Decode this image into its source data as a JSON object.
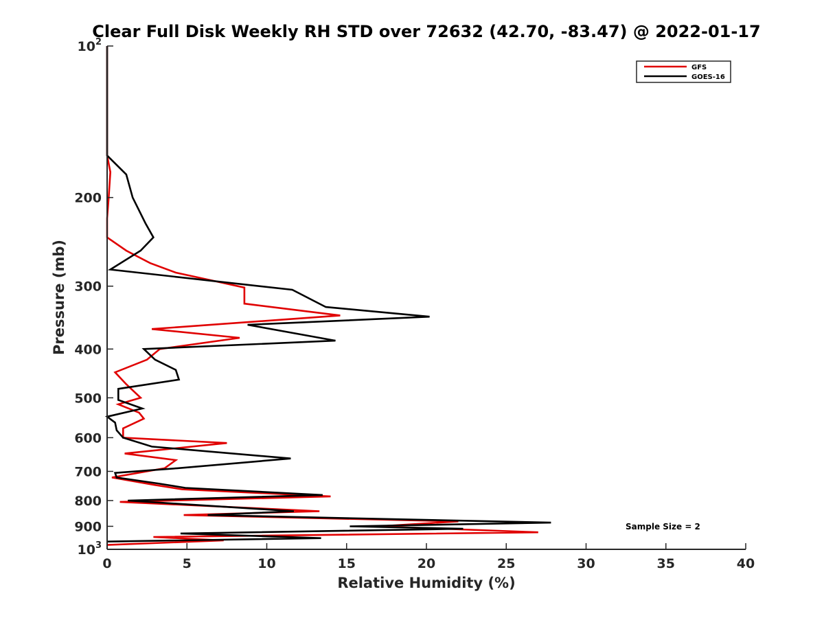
{
  "chart_data": {
    "type": "line",
    "title": "Clear Full Disk Weekly RH STD over 72632 (42.70, -83.47) @ 2022-01-17",
    "xlabel": "Relative Humidity (%)",
    "ylabel": "Pressure (mb)",
    "xlim": [
      0,
      40
    ],
    "ylim": [
      100,
      1000
    ],
    "y_scale": "log",
    "y_reversed": true,
    "grid": false,
    "legend_placement": "top-right",
    "x_ticks": [
      "0",
      "5",
      "10",
      "15",
      "20",
      "25",
      "30",
      "35",
      "40"
    ],
    "x_tick_values": [
      0,
      5,
      10,
      15,
      20,
      25,
      30,
      35,
      40
    ],
    "y_ticks": [
      {
        "value": 100,
        "base": "10",
        "sup": "2"
      },
      {
        "value": 200,
        "base": "200",
        "sup": ""
      },
      {
        "value": 300,
        "base": "300",
        "sup": ""
      },
      {
        "value": 400,
        "base": "400",
        "sup": ""
      },
      {
        "value": 500,
        "base": "500",
        "sup": ""
      },
      {
        "value": 600,
        "base": "600",
        "sup": ""
      },
      {
        "value": 700,
        "base": "700",
        "sup": ""
      },
      {
        "value": 800,
        "base": "800",
        "sup": ""
      },
      {
        "value": 900,
        "base": "900",
        "sup": ""
      },
      {
        "value": 1000,
        "base": "10",
        "sup": "3"
      }
    ],
    "annotation": "Sample Size = 2",
    "series": [
      {
        "name": "GFS",
        "color": "#e00000",
        "points": [
          [
            0.0,
            100
          ],
          [
            0.0,
            150
          ],
          [
            0.0,
            165
          ],
          [
            0.2,
            178
          ],
          [
            0.1,
            200
          ],
          [
            0.0,
            220
          ],
          [
            0.0,
            240
          ],
          [
            1.2,
            255
          ],
          [
            2.7,
            270
          ],
          [
            4.3,
            282
          ],
          [
            6.5,
            292
          ],
          [
            8.6,
            302
          ],
          [
            8.6,
            325
          ],
          [
            14.6,
            343
          ],
          [
            2.8,
            365
          ],
          [
            8.3,
            380
          ],
          [
            3.3,
            400
          ],
          [
            2.5,
            420
          ],
          [
            0.5,
            445
          ],
          [
            1.2,
            470
          ],
          [
            2.1,
            500
          ],
          [
            0.7,
            515
          ],
          [
            2.0,
            535
          ],
          [
            2.3,
            550
          ],
          [
            1.0,
            575
          ],
          [
            1.0,
            600
          ],
          [
            7.5,
            615
          ],
          [
            1.1,
            645
          ],
          [
            4.3,
            665
          ],
          [
            3.6,
            690
          ],
          [
            0.3,
            720
          ],
          [
            3.0,
            745
          ],
          [
            4.7,
            760
          ],
          [
            14.0,
            785
          ],
          [
            0.8,
            805
          ],
          [
            13.3,
            840
          ],
          [
            4.8,
            855
          ],
          [
            22.0,
            880
          ],
          [
            17.0,
            900
          ],
          [
            27.0,
            925
          ],
          [
            2.9,
            945
          ],
          [
            7.3,
            960
          ],
          [
            0.0,
            980
          ]
        ]
      },
      {
        "name": "GOES-16",
        "color": "#000000",
        "points": [
          [
            0.0,
            100
          ],
          [
            0.0,
            165
          ],
          [
            1.2,
            180
          ],
          [
            1.6,
            200
          ],
          [
            2.4,
            225
          ],
          [
            2.9,
            240
          ],
          [
            2.1,
            255
          ],
          [
            0.2,
            278
          ],
          [
            11.6,
            305
          ],
          [
            13.7,
            330
          ],
          [
            20.2,
            345
          ],
          [
            8.8,
            358
          ],
          [
            14.3,
            385
          ],
          [
            2.3,
            400
          ],
          [
            3.0,
            420
          ],
          [
            4.3,
            440
          ],
          [
            4.5,
            460
          ],
          [
            0.7,
            480
          ],
          [
            0.7,
            505
          ],
          [
            2.2,
            525
          ],
          [
            0.0,
            545
          ],
          [
            0.5,
            560
          ],
          [
            0.6,
            580
          ],
          [
            1.0,
            600
          ],
          [
            2.8,
            625
          ],
          [
            11.5,
            660
          ],
          [
            4.4,
            690
          ],
          [
            0.5,
            705
          ],
          [
            0.6,
            720
          ],
          [
            3.2,
            740
          ],
          [
            4.9,
            755
          ],
          [
            13.5,
            780
          ],
          [
            1.3,
            800
          ],
          [
            11.7,
            840
          ],
          [
            6.3,
            855
          ],
          [
            27.8,
            885
          ],
          [
            15.2,
            900
          ],
          [
            22.3,
            910
          ],
          [
            4.6,
            930
          ],
          [
            13.4,
            950
          ],
          [
            0.0,
            965
          ]
        ]
      }
    ]
  }
}
